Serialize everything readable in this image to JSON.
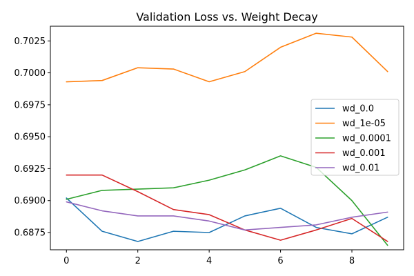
{
  "chart_data": {
    "type": "line",
    "title": "Validation Loss vs. Weight Decay",
    "xlabel": "",
    "ylabel": "",
    "x": [
      0,
      1,
      2,
      3,
      4,
      5,
      6,
      7,
      8,
      9
    ],
    "xlim": [
      -0.45,
      9.45
    ],
    "ylim": [
      0.68615,
      0.70365
    ],
    "xticks": [
      0,
      2,
      4,
      6,
      8
    ],
    "xtick_labels": [
      "0",
      "2",
      "4",
      "6",
      "8"
    ],
    "yticks": [
      0.6875,
      0.69,
      0.6925,
      0.695,
      0.6975,
      0.7,
      0.7025
    ],
    "ytick_labels": [
      "0.6875",
      "0.6900",
      "0.6925",
      "0.6950",
      "0.6975",
      "0.7000",
      "0.7025"
    ],
    "grid": false,
    "legend_position": "center-right",
    "series": [
      {
        "name": "wd_0.0",
        "color": "#1f77b4",
        "values": [
          0.6902,
          0.6876,
          0.6868,
          0.6876,
          0.6875,
          0.6888,
          0.6894,
          0.6879,
          0.6874,
          0.6887
        ]
      },
      {
        "name": "wd_1e-05",
        "color": "#ff7f0e",
        "values": [
          0.6993,
          0.6994,
          0.7004,
          0.7003,
          0.6993,
          0.7001,
          0.702,
          0.7031,
          0.7028,
          0.7001
        ]
      },
      {
        "name": "wd_0.0001",
        "color": "#2ca02c",
        "values": [
          0.6901,
          0.6908,
          0.6909,
          0.691,
          0.6916,
          0.6924,
          0.6935,
          0.6926,
          0.69,
          0.6865
        ]
      },
      {
        "name": "wd_0.001",
        "color": "#d62728",
        "values": [
          0.692,
          0.692,
          0.6907,
          0.6893,
          0.6889,
          0.6877,
          0.6869,
          0.6877,
          0.6886,
          0.6868
        ]
      },
      {
        "name": "wd_0.01",
        "color": "#9467bd",
        "values": [
          0.6899,
          0.6892,
          0.6888,
          0.6888,
          0.6884,
          0.6877,
          0.6879,
          0.6881,
          0.6887,
          0.6891
        ]
      }
    ]
  }
}
